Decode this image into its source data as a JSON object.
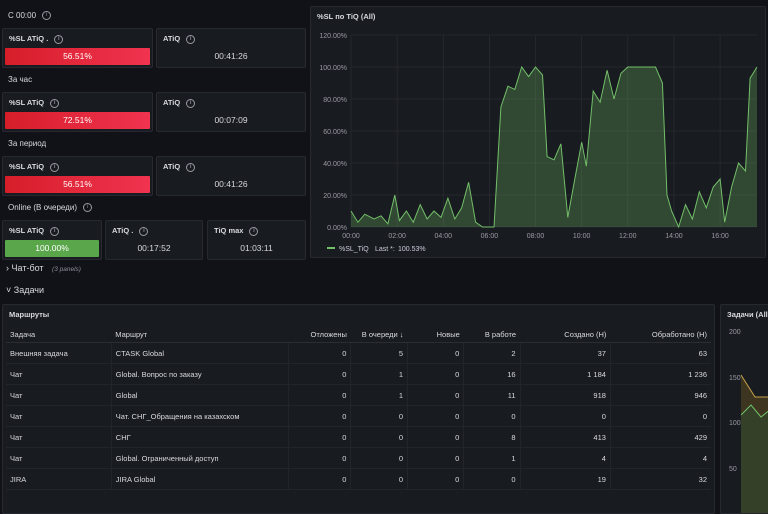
{
  "sections": {
    "since": "С 00:00",
    "hour": "За час",
    "period": "За период",
    "online": "Online (В очереди)"
  },
  "stats": {
    "r1": {
      "sl_title": "%SL ATiQ .",
      "sl_value": "56.51%",
      "atiq_title": "ATiQ",
      "atiq_value": "00:41:26"
    },
    "r2": {
      "sl_title": "%SL ATiQ",
      "sl_value": "72.51%",
      "atiq_title": "ATiQ",
      "atiq_value": "00:07:09"
    },
    "r3": {
      "sl_title": "%SL ATiQ",
      "sl_value": "56.51%",
      "atiq_title": "ATiQ",
      "atiq_value": "00:41:26"
    },
    "online": {
      "sl_title": "%SL ATiQ",
      "sl_value": "100.00%",
      "atiq_title": "ATiQ .",
      "atiq_value": "00:17:52",
      "tiq_title": "TiQ max",
      "tiq_value": "01:03:11"
    }
  },
  "chat_row": {
    "label": "Чат-бот",
    "hint": "(3 panels)"
  },
  "tasks_row": {
    "label": "Задачи"
  },
  "right_panel": {
    "title": "Задачи (All",
    "ticks": [
      "200",
      "150",
      "100",
      "50"
    ]
  },
  "colors": {
    "red": "#e8283b",
    "green": "#5aa64b",
    "line": "#73bf69"
  },
  "chart_data": {
    "type": "area",
    "title": "%SL по TiQ (All)",
    "ylim": [
      0,
      120
    ],
    "yticks": [
      "0.00%",
      "20.00%",
      "40.00%",
      "60.00%",
      "80.00%",
      "100.00%",
      "120.00%"
    ],
    "xticks": [
      "00:00",
      "02:00",
      "04:00",
      "06:00",
      "08:00",
      "10:00",
      "12:00",
      "14:00",
      "16:00"
    ],
    "legend": {
      "series": "%SL_TiQ",
      "last_label": "Last *:",
      "last_value": "100.53%"
    },
    "series": [
      {
        "name": "%SL_TiQ",
        "points": [
          [
            0,
            10
          ],
          [
            0.3,
            3
          ],
          [
            0.6,
            8
          ],
          [
            1,
            5
          ],
          [
            1.3,
            7
          ],
          [
            1.6,
            2
          ],
          [
            1.9,
            20
          ],
          [
            2.1,
            4
          ],
          [
            2.4,
            10
          ],
          [
            2.7,
            3
          ],
          [
            3,
            14
          ],
          [
            3.3,
            5
          ],
          [
            3.6,
            10
          ],
          [
            3.9,
            6
          ],
          [
            4.2,
            18
          ],
          [
            4.5,
            5
          ],
          [
            4.8,
            12
          ],
          [
            5.1,
            28
          ],
          [
            5.4,
            3
          ],
          [
            5.7,
            0
          ],
          [
            6,
            0
          ],
          [
            6.2,
            0
          ],
          [
            6.5,
            75
          ],
          [
            6.8,
            88
          ],
          [
            7.1,
            86
          ],
          [
            7.4,
            100
          ],
          [
            7.7,
            94
          ],
          [
            8,
            100
          ],
          [
            8.3,
            95
          ],
          [
            8.5,
            44
          ],
          [
            8.8,
            42
          ],
          [
            9.1,
            52
          ],
          [
            9.4,
            6
          ],
          [
            9.7,
            30
          ],
          [
            10,
            53
          ],
          [
            10.2,
            38
          ],
          [
            10.5,
            85
          ],
          [
            10.8,
            78
          ],
          [
            11.1,
            98
          ],
          [
            11.4,
            80
          ],
          [
            11.7,
            96
          ],
          [
            12,
            100
          ],
          [
            12.4,
            100
          ],
          [
            12.8,
            100
          ],
          [
            13.2,
            100
          ],
          [
            13.5,
            90
          ],
          [
            13.7,
            20
          ],
          [
            13.9,
            10
          ],
          [
            14.2,
            0
          ],
          [
            14.5,
            14
          ],
          [
            14.8,
            5
          ],
          [
            15.1,
            22
          ],
          [
            15.4,
            12
          ],
          [
            15.7,
            25
          ],
          [
            16,
            30
          ],
          [
            16.2,
            3
          ],
          [
            16.5,
            25
          ],
          [
            16.8,
            40
          ],
          [
            17.1,
            35
          ],
          [
            17.3,
            93
          ],
          [
            17.6,
            100
          ]
        ]
      }
    ]
  },
  "table": {
    "title": "Маршруты",
    "headers": [
      "Задача",
      "Маршрут",
      "Отложены",
      "В очереди ↓",
      "Новые",
      "В работе",
      "Создано (Н)",
      "Обработано (Н)"
    ],
    "rows": [
      [
        "Внешняя задача",
        "CTASK Global",
        "0",
        "5",
        "0",
        "2",
        "37",
        "63"
      ],
      [
        "Чат",
        "Global. Вопрос по заказу",
        "0",
        "1",
        "0",
        "16",
        "1 184",
        "1 236"
      ],
      [
        "Чат",
        "Global",
        "0",
        "1",
        "0",
        "11",
        "918",
        "946"
      ],
      [
        "Чат",
        "Чат. СНГ_Обращения на казахском",
        "0",
        "0",
        "0",
        "0",
        "0",
        "0"
      ],
      [
        "Чат",
        "СНГ",
        "0",
        "0",
        "0",
        "8",
        "413",
        "429"
      ],
      [
        "Чат",
        "Global. Ограниченный доступ",
        "0",
        "0",
        "0",
        "1",
        "4",
        "4"
      ],
      [
        "JIRA",
        "JIRA Global",
        "0",
        "0",
        "0",
        "0",
        "19",
        "32"
      ]
    ]
  }
}
